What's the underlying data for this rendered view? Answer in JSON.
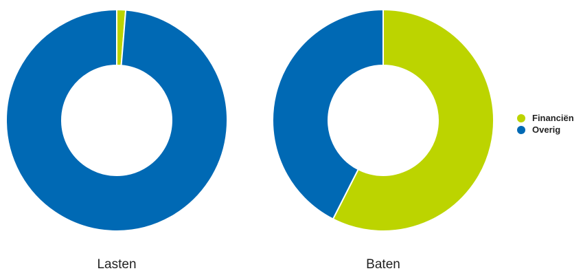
{
  "chart_data": [
    {
      "type": "pie",
      "donut": true,
      "title": "Lasten",
      "categories": [
        "Financiën",
        "Overig"
      ],
      "values": [
        1.3,
        98.7
      ],
      "unit": "%"
    },
    {
      "type": "pie",
      "donut": true,
      "title": "Baten",
      "categories": [
        "Financiën",
        "Overig"
      ],
      "values": [
        57.5,
        42.5
      ],
      "unit": "%"
    }
  ],
  "legend": {
    "position": "right",
    "items": [
      {
        "label": "Financiën",
        "color": "#bcd400"
      },
      {
        "label": "Overig",
        "color": "#0069b4"
      }
    ]
  },
  "colors": {
    "Financiën": "#bcd400",
    "Overig": "#0069b4"
  }
}
